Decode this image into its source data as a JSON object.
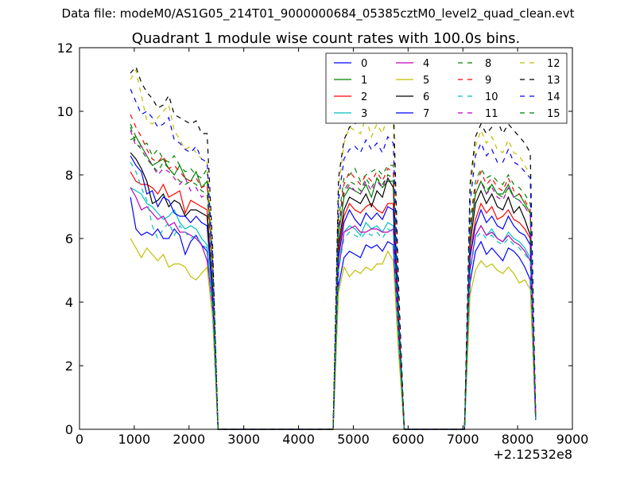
{
  "suptitle": "Data file: modeM0/AS1G05_214T01_9000000684_05385cztM0_level2_quad_clean.evt",
  "chart_data": {
    "type": "line",
    "title": "Quadrant 1 module wise count rates with 100.0s bins.",
    "xlabel": "",
    "ylabel": "",
    "x_offset_label": "+2.12532e8",
    "xlim": [
      0,
      9000
    ],
    "ylim": [
      0,
      12
    ],
    "xticks": [
      "0",
      "1000",
      "2000",
      "3000",
      "4000",
      "5000",
      "6000",
      "7000",
      "8000",
      "9000"
    ],
    "yticks": [
      "0",
      "2",
      "4",
      "6",
      "8",
      "10",
      "12"
    ],
    "legend_position": "upper-right",
    "legend_columns": 4,
    "x": [
      930,
      1030,
      1130,
      1230,
      1330,
      1430,
      1530,
      1630,
      1730,
      1830,
      1930,
      2030,
      2130,
      2230,
      2330,
      2430,
      2530,
      2630,
      4630,
      4730,
      4830,
      4930,
      5030,
      5130,
      5230,
      5330,
      5430,
      5530,
      5630,
      5730,
      5830,
      5930,
      6030,
      7030,
      7130,
      7230,
      7330,
      7430,
      7530,
      7630,
      7730,
      7830,
      7930,
      8030,
      8130,
      8230,
      8330
    ],
    "series": [
      {
        "name": "0",
        "color": "#0000ff",
        "dash": "solid",
        "values": [
          7.3,
          6.3,
          6.1,
          6.2,
          6.1,
          6.3,
          6.0,
          6.0,
          6.3,
          6.1,
          5.5,
          5.9,
          6.1,
          5.8,
          5.6,
          3.8,
          0,
          0,
          0,
          4.5,
          5.4,
          5.6,
          5.5,
          5.4,
          5.8,
          5.7,
          5.8,
          5.6,
          5.9,
          5.8,
          2.5,
          0,
          0,
          0,
          4.6,
          5.6,
          5.9,
          5.5,
          5.7,
          5.5,
          5.3,
          5.7,
          5.6,
          5.4,
          5.1,
          4.7,
          0.3
        ]
      },
      {
        "name": "1",
        "color": "#008000",
        "dash": "solid",
        "values": [
          9.1,
          9.2,
          8.9,
          8.6,
          8.3,
          8.4,
          8.5,
          8.2,
          8.0,
          8.3,
          7.9,
          7.8,
          8.1,
          7.6,
          7.8,
          5.0,
          0,
          0,
          0,
          6.1,
          7.3,
          7.6,
          7.5,
          7.4,
          7.7,
          7.3,
          7.9,
          7.6,
          7.8,
          7.8,
          3.5,
          0,
          0,
          0,
          6.1,
          7.4,
          7.8,
          7.4,
          7.7,
          7.4,
          7.4,
          7.7,
          7.3,
          7.4,
          7.1,
          6.8,
          0.4
        ]
      },
      {
        "name": "2",
        "color": "#ff0000",
        "dash": "solid",
        "values": [
          8.1,
          7.8,
          7.7,
          7.7,
          7.6,
          7.4,
          7.7,
          7.3,
          7.4,
          7.5,
          6.8,
          7.2,
          7.1,
          7.0,
          6.9,
          4.4,
          0,
          0,
          0,
          5.6,
          6.7,
          7.1,
          6.9,
          6.8,
          7.0,
          7.1,
          6.9,
          6.8,
          7.1,
          7.1,
          3.1,
          0,
          0,
          0,
          5.5,
          6.6,
          7.1,
          6.8,
          7.0,
          6.6,
          6.7,
          6.9,
          6.6,
          6.5,
          6.3,
          6.0,
          0.3
        ]
      },
      {
        "name": "3",
        "color": "#00bfbf",
        "dash": "solid",
        "values": [
          7.6,
          7.5,
          7.4,
          7.1,
          7.0,
          6.8,
          6.6,
          6.7,
          6.9,
          6.5,
          6.3,
          6.4,
          6.3,
          6.0,
          5.8,
          3.9,
          0,
          0,
          0,
          5.1,
          6.2,
          6.4,
          6.3,
          6.1,
          6.5,
          6.3,
          6.4,
          6.2,
          6.5,
          6.4,
          2.8,
          0,
          0,
          0,
          5.0,
          6.1,
          6.4,
          6.1,
          6.3,
          6.0,
          5.9,
          6.2,
          6.0,
          5.9,
          5.7,
          5.4,
          0.3
        ]
      },
      {
        "name": "4",
        "color": "#bf00bf",
        "dash": "solid",
        "values": [
          7.6,
          7.3,
          6.9,
          7.0,
          6.8,
          6.6,
          6.7,
          6.4,
          6.5,
          6.2,
          6.2,
          6.1,
          6.0,
          5.8,
          5.3,
          3.9,
          0,
          0,
          0,
          5.0,
          6.2,
          6.3,
          6.4,
          6.2,
          6.2,
          6.3,
          6.3,
          6.2,
          6.2,
          6.3,
          2.7,
          0,
          0,
          0,
          5.0,
          6.1,
          6.4,
          6.1,
          6.2,
          6.0,
          5.9,
          6.1,
          5.9,
          5.8,
          5.6,
          5.3,
          0.3
        ]
      },
      {
        "name": "5",
        "color": "#bfbf00",
        "dash": "solid",
        "values": [
          6.0,
          5.7,
          5.4,
          5.7,
          5.5,
          5.3,
          5.5,
          5.1,
          5.2,
          5.2,
          5.1,
          4.8,
          4.7,
          4.9,
          5.1,
          3.5,
          0,
          0,
          0,
          4.3,
          5.1,
          4.8,
          5.0,
          4.9,
          5.1,
          5.0,
          5.2,
          5.2,
          5.6,
          5.3,
          2.3,
          0,
          0,
          0,
          4.2,
          5.0,
          5.3,
          5.1,
          5.2,
          5.0,
          4.9,
          5.1,
          4.9,
          4.6,
          4.7,
          4.4,
          0.3
        ]
      },
      {
        "name": "6",
        "color": "#000000",
        "dash": "solid",
        "values": [
          8.7,
          8.5,
          8.2,
          7.8,
          7.1,
          7.2,
          7.4,
          7.0,
          7.2,
          7.1,
          6.7,
          6.9,
          6.9,
          6.8,
          6.7,
          4.3,
          0,
          0,
          0,
          5.8,
          6.9,
          7.3,
          7.2,
          7.1,
          7.4,
          7.0,
          7.5,
          7.3,
          7.9,
          7.6,
          3.2,
          0,
          0,
          0,
          5.8,
          7.1,
          7.5,
          7.1,
          7.4,
          7.0,
          6.9,
          7.3,
          6.8,
          7.0,
          6.6,
          6.1,
          0.3
        ]
      },
      {
        "name": "7",
        "color": "#0000ff",
        "dash": "solid",
        "values": [
          8.6,
          8.3,
          8.1,
          7.4,
          7.5,
          7.0,
          7.3,
          7.2,
          6.8,
          6.7,
          6.7,
          6.5,
          6.7,
          6.5,
          6.4,
          4.2,
          0,
          0,
          0,
          5.4,
          6.5,
          6.9,
          6.6,
          6.4,
          6.8,
          6.6,
          6.8,
          6.6,
          7.0,
          6.9,
          3.0,
          0,
          0,
          0,
          5.4,
          6.4,
          6.9,
          6.5,
          6.7,
          6.4,
          6.3,
          6.7,
          6.4,
          6.2,
          6.1,
          5.8,
          0.3
        ]
      },
      {
        "name": "8",
        "color": "#008000",
        "dash": "dashed",
        "values": [
          9.6,
          9.2,
          8.9,
          9.0,
          8.6,
          8.8,
          8.5,
          8.4,
          8.6,
          8.3,
          8.1,
          8.2,
          8.0,
          7.9,
          8.2,
          5.2,
          0,
          0,
          0,
          6.6,
          7.9,
          8.0,
          8.2,
          7.8,
          8.0,
          8.1,
          8.2,
          8.0,
          8.3,
          8.3,
          3.6,
          0,
          0,
          0,
          6.5,
          7.8,
          8.2,
          7.9,
          8.0,
          7.8,
          7.7,
          8.0,
          7.7,
          7.6,
          7.4,
          7.1,
          0.4
        ]
      },
      {
        "name": "9",
        "color": "#ff0000",
        "dash": "dashed",
        "values": [
          9.9,
          9.5,
          9.2,
          8.8,
          8.5,
          8.4,
          8.6,
          8.2,
          8.3,
          8.1,
          7.9,
          7.8,
          7.9,
          7.6,
          7.7,
          5.0,
          0,
          0,
          0,
          6.4,
          7.7,
          8.1,
          7.9,
          7.7,
          8.0,
          7.8,
          8.1,
          7.8,
          8.2,
          8.1,
          3.5,
          0,
          0,
          0,
          6.3,
          7.6,
          8.1,
          7.7,
          7.9,
          7.6,
          7.5,
          7.9,
          7.5,
          7.4,
          7.2,
          6.9,
          0.4
        ]
      },
      {
        "name": "10",
        "color": "#00bfbf",
        "dash": "dashed",
        "values": [
          8.4,
          8.1,
          7.6,
          7.2,
          6.4,
          6.0,
          6.3,
          6.5,
          6.1,
          6.4,
          6.2,
          6.0,
          6.1,
          5.8,
          5.7,
          3.8,
          0,
          0,
          0,
          5.0,
          6.0,
          6.2,
          6.1,
          6.0,
          6.2,
          6.1,
          6.2,
          6.0,
          6.3,
          6.2,
          2.7,
          0,
          0,
          0,
          4.9,
          6.0,
          6.2,
          6.0,
          6.1,
          5.9,
          5.8,
          6.0,
          5.8,
          5.7,
          5.5,
          5.3,
          0.3
        ]
      },
      {
        "name": "11",
        "color": "#bf00bf",
        "dash": "dashed",
        "values": [
          9.4,
          8.9,
          8.9,
          8.6,
          8.3,
          8.0,
          8.2,
          8.1,
          7.9,
          7.7,
          7.9,
          7.5,
          7.6,
          7.3,
          7.4,
          4.8,
          0,
          0,
          0,
          6.2,
          7.4,
          7.7,
          7.5,
          7.4,
          7.8,
          7.5,
          7.8,
          7.6,
          8.0,
          7.9,
          3.4,
          0,
          0,
          0,
          6.1,
          7.4,
          7.8,
          7.4,
          7.6,
          7.3,
          7.2,
          7.6,
          7.3,
          7.2,
          7.0,
          6.7,
          0.4
        ]
      },
      {
        "name": "12",
        "color": "#bfbf00",
        "dash": "dashed",
        "values": [
          11.0,
          11.3,
          10.5,
          9.7,
          9.6,
          9.8,
          10.0,
          10.2,
          9.4,
          9.1,
          8.8,
          8.9,
          8.7,
          8.5,
          8.4,
          5.4,
          0,
          0,
          0,
          7.5,
          9.0,
          9.5,
          9.4,
          9.3,
          9.8,
          9.2,
          9.6,
          9.3,
          9.9,
          9.7,
          4.1,
          0,
          0,
          0,
          7.4,
          8.9,
          9.4,
          9.0,
          9.2,
          8.8,
          8.7,
          9.1,
          8.7,
          8.6,
          8.3,
          8.0,
          0.4
        ]
      },
      {
        "name": "13",
        "color": "#000000",
        "dash": "dashed",
        "values": [
          11.2,
          11.4,
          10.9,
          10.6,
          10.4,
          10.1,
          10.2,
          10.5,
          9.9,
          9.8,
          9.7,
          9.6,
          9.7,
          9.3,
          9.3,
          5.8,
          0,
          0,
          0,
          7.9,
          9.1,
          9.5,
          9.6,
          9.8,
          10.2,
          9.9,
          10.3,
          10.1,
          10.4,
          10.3,
          4.4,
          0,
          0,
          0,
          7.7,
          9.2,
          9.6,
          9.3,
          9.5,
          9.7,
          9.3,
          9.6,
          9.4,
          9.2,
          9.0,
          8.7,
          0.5
        ]
      },
      {
        "name": "14",
        "color": "#0000ff",
        "dash": "dashed",
        "values": [
          10.7,
          10.3,
          9.9,
          10.0,
          9.8,
          9.5,
          9.6,
          9.8,
          9.1,
          9.0,
          8.8,
          8.7,
          8.9,
          8.5,
          8.4,
          5.5,
          0,
          0,
          0,
          7.2,
          8.5,
          8.8,
          8.9,
          8.7,
          9.1,
          8.8,
          9.0,
          8.7,
          9.2,
          9.0,
          3.9,
          0,
          0,
          0,
          7.1,
          8.6,
          9.0,
          8.6,
          8.8,
          8.4,
          8.4,
          8.8,
          8.4,
          8.3,
          8.1,
          7.9,
          0.4
        ]
      },
      {
        "name": "15",
        "color": "#008000",
        "dash": "dashed",
        "values": [
          9.5,
          9.0,
          8.8,
          8.5,
          8.3,
          8.1,
          8.4,
          8.2,
          8.0,
          7.8,
          7.7,
          7.8,
          7.7,
          7.5,
          7.4,
          4.9,
          0,
          0,
          0,
          6.3,
          7.5,
          7.8,
          7.7,
          7.5,
          7.9,
          7.6,
          7.9,
          7.7,
          8.0,
          7.9,
          3.4,
          0,
          0,
          0,
          6.2,
          7.4,
          7.8,
          7.5,
          7.7,
          7.4,
          7.3,
          7.6,
          7.3,
          7.2,
          7.0,
          6.8,
          0.4
        ]
      }
    ]
  }
}
